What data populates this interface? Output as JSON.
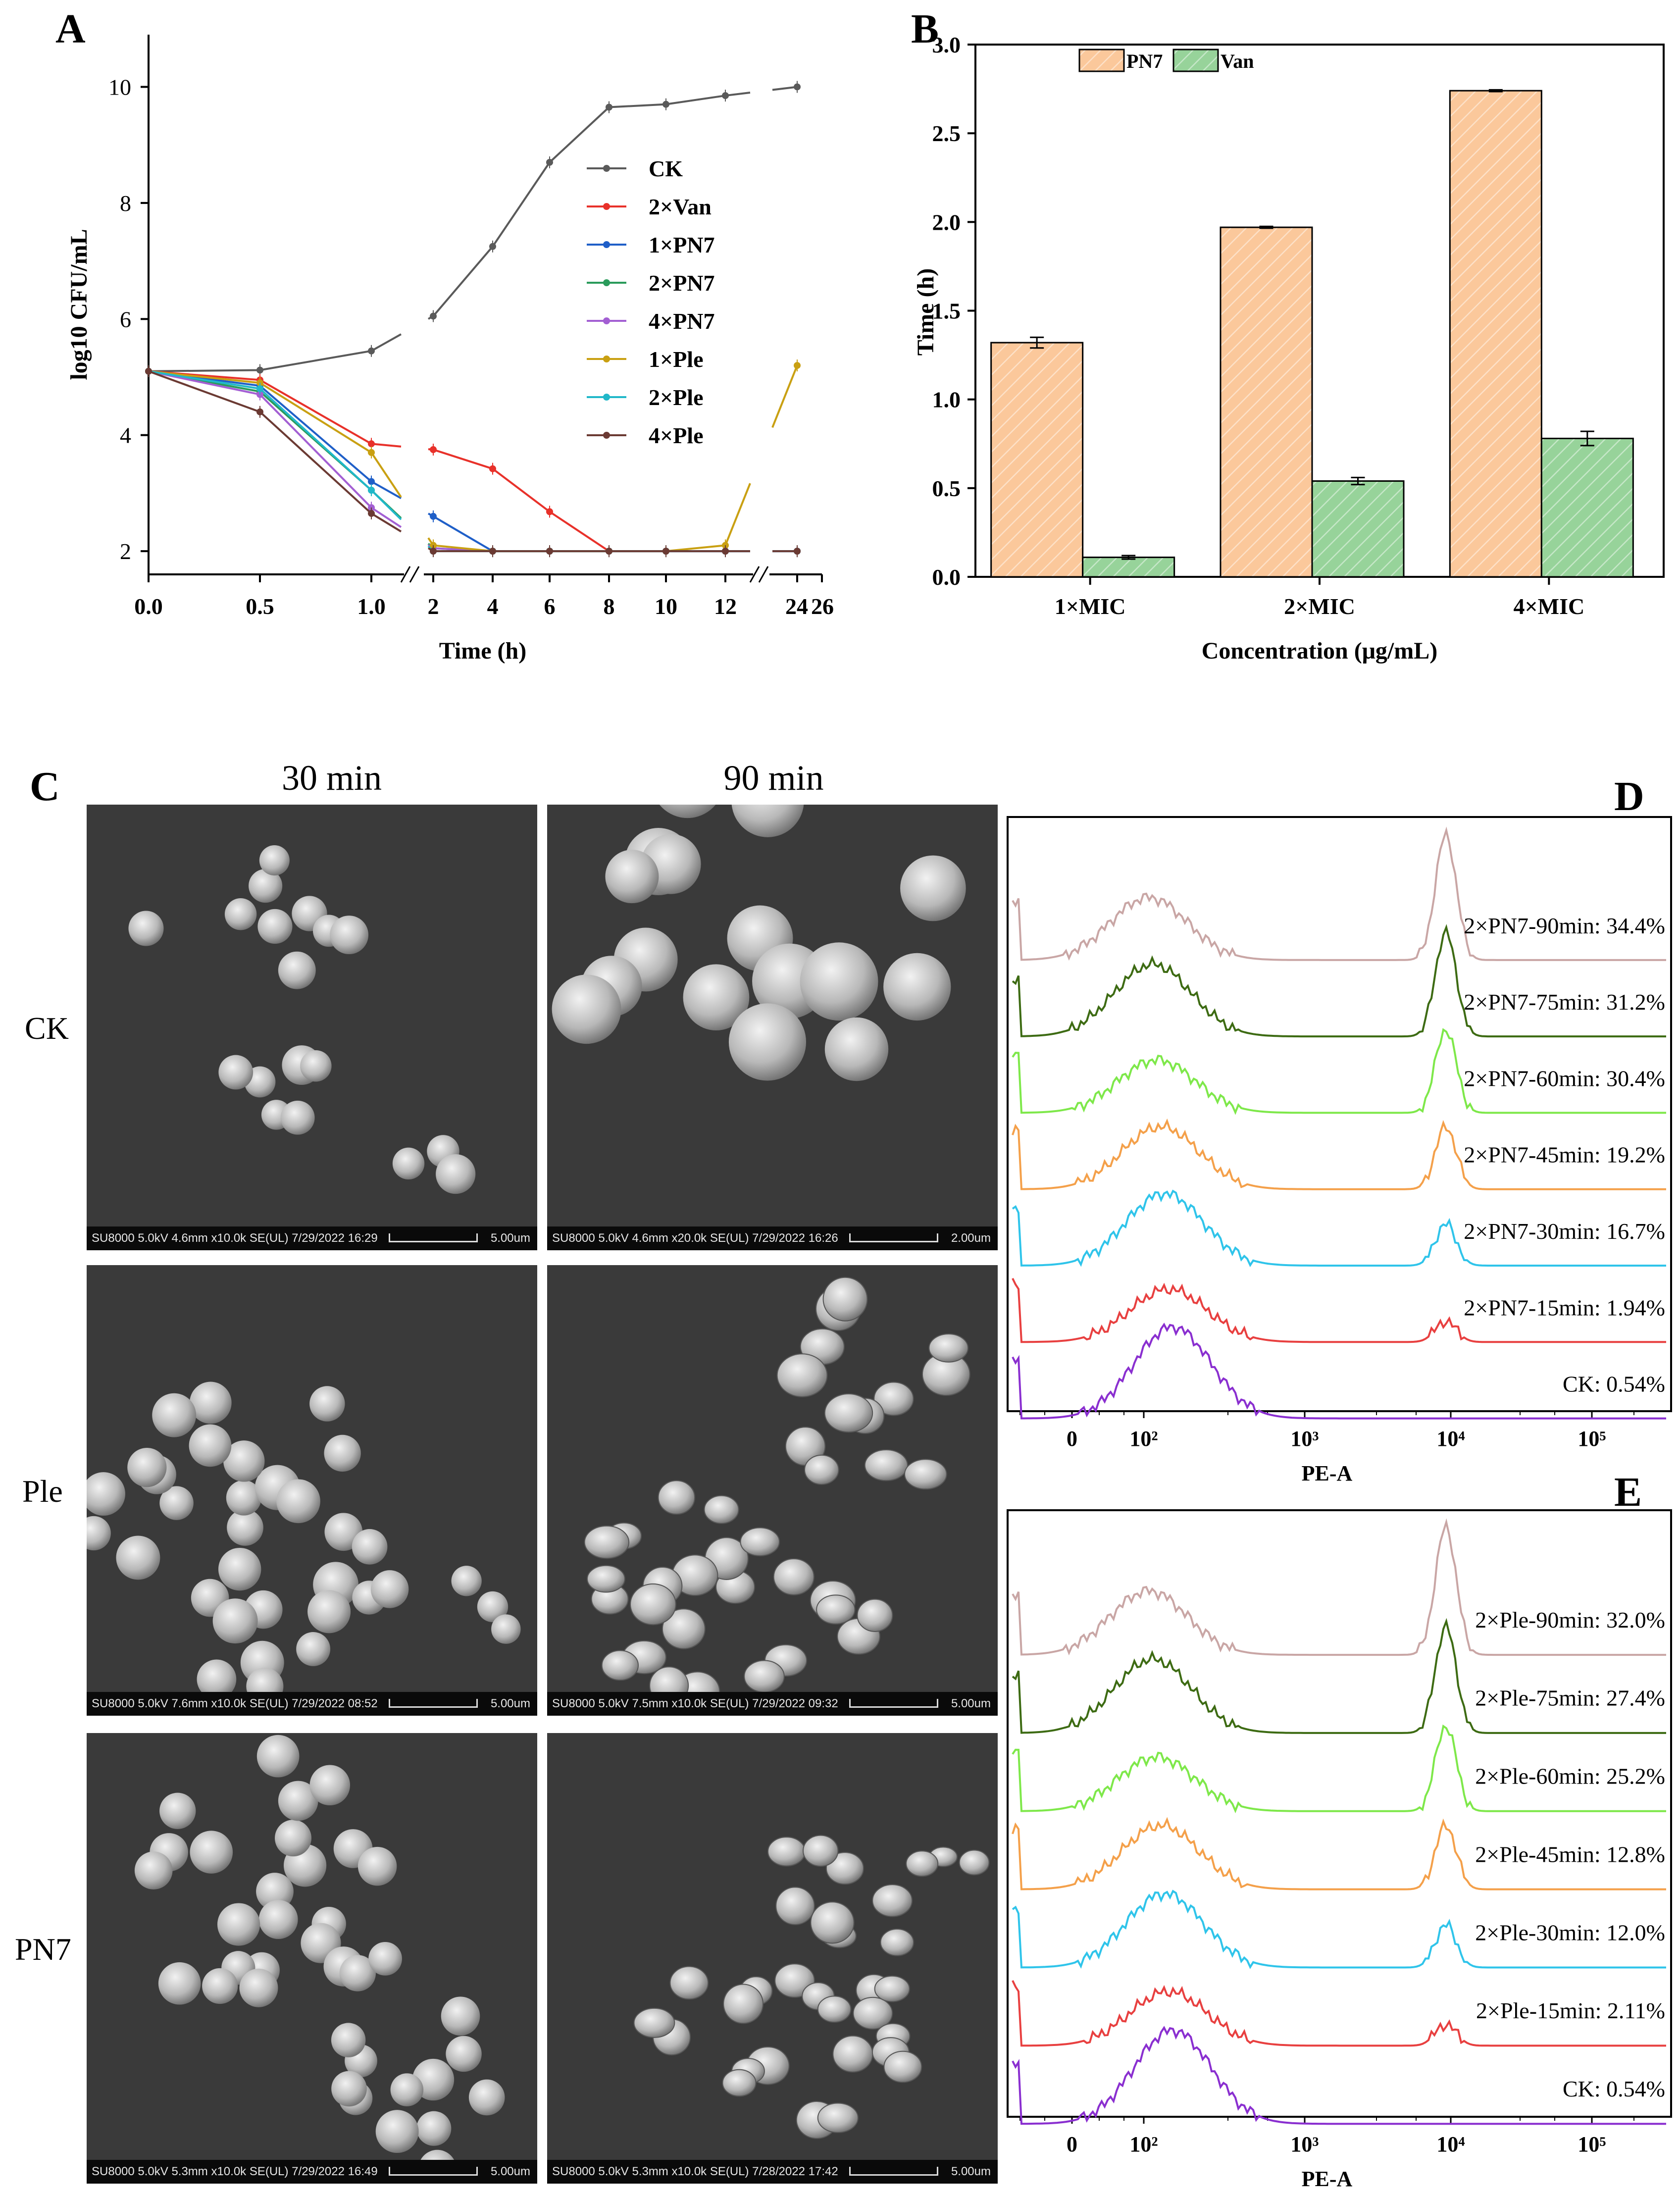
{
  "panels": {
    "a": "A",
    "b": "B",
    "c": "C",
    "d": "D",
    "e": "E"
  },
  "chart_data": [
    {
      "panel": "A",
      "type": "line",
      "xlabel": "Time (h)",
      "ylabel": "log10 CFU/mL",
      "x": [
        0,
        0.5,
        1,
        2,
        4,
        6,
        8,
        10,
        12,
        24
      ],
      "x_tick_labels": [
        "0.0",
        "0.5",
        "1.0",
        "2",
        "4",
        "6",
        "8",
        "10",
        "12",
        "24",
        "26"
      ],
      "x_axis_breaks": [
        "between 1.0 and 2",
        "between 12 and 24"
      ],
      "y_ticks": [
        2,
        4,
        6,
        8,
        10
      ],
      "ylim": [
        1.6,
        10.9
      ],
      "legend_position": "center-right",
      "series": [
        {
          "name": "CK",
          "color": "#5a5a5a",
          "values": [
            5.1,
            5.12,
            5.45,
            6.05,
            7.25,
            8.7,
            9.65,
            9.7,
            9.85,
            10.0
          ]
        },
        {
          "name": "2×Van",
          "color": "#e8312a",
          "values": [
            5.1,
            4.95,
            3.85,
            3.75,
            3.42,
            2.68,
            2.0,
            2.0,
            2.0,
            2.0
          ]
        },
        {
          "name": "1×PN7",
          "color": "#1f5fc8",
          "values": [
            5.1,
            4.85,
            3.2,
            2.6,
            2.0,
            2.0,
            2.0,
            2.0,
            2.0,
            2.0
          ]
        },
        {
          "name": "2×PN7",
          "color": "#2a9b5b",
          "values": [
            5.1,
            4.75,
            3.05,
            2.05,
            2.0,
            2.0,
            2.0,
            2.0,
            2.0,
            2.0
          ]
        },
        {
          "name": "4×PN7",
          "color": "#a35fd3",
          "values": [
            5.1,
            4.7,
            2.75,
            2.05,
            2.0,
            2.0,
            2.0,
            2.0,
            2.0,
            2.0
          ]
        },
        {
          "name": "1×Ple",
          "color": "#c9a012",
          "values": [
            5.1,
            4.9,
            3.7,
            2.1,
            2.0,
            2.0,
            2.0,
            2.0,
            2.1,
            5.2
          ]
        },
        {
          "name": "2×Ple",
          "color": "#21b8c9",
          "values": [
            5.1,
            4.8,
            3.05,
            2.0,
            2.0,
            2.0,
            2.0,
            2.0,
            2.0,
            2.0
          ]
        },
        {
          "name": "4×Ple",
          "color": "#6b3a33",
          "values": [
            5.1,
            4.4,
            2.65,
            2.0,
            2.0,
            2.0,
            2.0,
            2.0,
            2.0,
            2.0
          ]
        }
      ]
    },
    {
      "panel": "B",
      "type": "bar",
      "xlabel": "Concentration (μg/mL)",
      "ylabel": "Time (h)",
      "categories": [
        "1×MIC",
        "2×MIC",
        "4×MIC"
      ],
      "ylim": [
        0,
        3.0
      ],
      "y_tick_labels": [
        "0.0",
        "0.5",
        "1.0",
        "1.5",
        "2.0",
        "2.5",
        "3.0"
      ],
      "legend_position": "top-left",
      "series": [
        {
          "name": "PN7",
          "color": "#fbc89b",
          "values": [
            1.32,
            1.97,
            2.74
          ],
          "errors": [
            0.03,
            0.005,
            0.005
          ]
        },
        {
          "name": "Van",
          "color": "#97d39a",
          "values": [
            0.11,
            0.54,
            0.78
          ],
          "errors": [
            0.01,
            0.02,
            0.04
          ]
        }
      ]
    },
    {
      "panel": "D",
      "type": "line",
      "xlabel": "PE-A",
      "x_tick_labels": [
        "0",
        "10²",
        "10³",
        "10⁴",
        "10⁵"
      ],
      "traces": [
        {
          "label": "2×PN7-90min: 34.4%",
          "color": "#c9a6a5"
        },
        {
          "label": "2×PN7-75min: 31.2%",
          "color": "#3d6b13"
        },
        {
          "label": "2×PN7-60min: 30.4%",
          "color": "#7ee84a"
        },
        {
          "label": "2×PN7-45min: 19.2%",
          "color": "#f4a04a"
        },
        {
          "label": "2×PN7-30min: 16.7%",
          "color": "#2fc4ea"
        },
        {
          "label": "2×PN7-15min: 1.94%",
          "color": "#e84040"
        },
        {
          "label": "CK: 0.54%",
          "color": "#8a2fd0"
        }
      ]
    },
    {
      "panel": "E",
      "type": "line",
      "xlabel": "PE-A",
      "x_tick_labels": [
        "0",
        "10²",
        "10³",
        "10⁴",
        "10⁵"
      ],
      "traces": [
        {
          "label": "2×Ple-90min: 32.0%",
          "color": "#c9a6a5"
        },
        {
          "label": "2×Ple-75min: 27.4%",
          "color": "#3d6b13"
        },
        {
          "label": "2×Ple-60min: 25.2%",
          "color": "#7ee84a"
        },
        {
          "label": "2×Ple-45min: 12.8%",
          "color": "#f4a04a"
        },
        {
          "label": "2×Ple-30min: 12.0%",
          "color": "#2fc4ea"
        },
        {
          "label": "2×Ple-15min: 2.11%",
          "color": "#e84040"
        },
        {
          "label": "CK: 0.54%",
          "color": "#8a2fd0"
        }
      ]
    }
  ],
  "sem": {
    "col_labels": [
      "30 min",
      "90 min"
    ],
    "row_labels": [
      "CK",
      "Ple",
      "PN7"
    ],
    "images": [
      {
        "info": "SU8000 5.0kV 4.6mm x10.0k SE(UL) 7/29/2022 16:29",
        "scale": "5.00um"
      },
      {
        "info": "SU8000 5.0kV 4.6mm x20.0k SE(UL) 7/29/2022 16:26",
        "scale": "2.00um"
      },
      {
        "info": "SU8000 5.0kV 7.6mm x10.0k SE(UL) 7/29/2022 08:52",
        "scale": "5.00um"
      },
      {
        "info": "SU8000 5.0kV 7.5mm x10.0k SE(UL) 7/29/2022 09:32",
        "scale": "5.00um"
      },
      {
        "info": "SU8000 5.0kV 5.3mm x10.0k SE(UL) 7/29/2022 16:49",
        "scale": "5.00um"
      },
      {
        "info": "SU8000 5.0kV 5.3mm x10.0k SE(UL) 7/28/2022 17:42",
        "scale": "5.00um"
      }
    ]
  }
}
